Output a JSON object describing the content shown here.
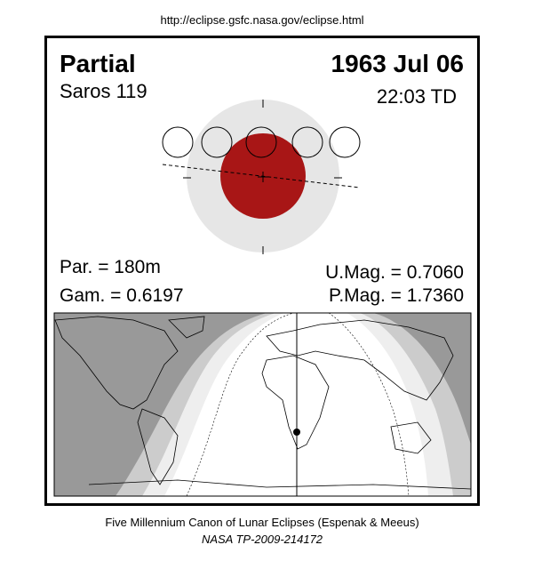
{
  "header": {
    "url": "http://eclipse.gsfc.nasa.gov/eclipse.html"
  },
  "eclipse": {
    "type": "Partial",
    "date": "1963 Jul 06",
    "saros": "Saros 119",
    "time": "22:03 TD"
  },
  "parameters": {
    "duration": "Par. = 180m",
    "gamma": "Gam. = 0.6197",
    "umbral_magnitude": "U.Mag. = 0.7060",
    "penumbral_magnitude": "P.Mag. = 1.7360"
  },
  "footer": {
    "line1": "Five Millennium Canon of Lunar Eclipses (Espenak & Meeus)",
    "line2": "NASA TP-2009-214172"
  }
}
